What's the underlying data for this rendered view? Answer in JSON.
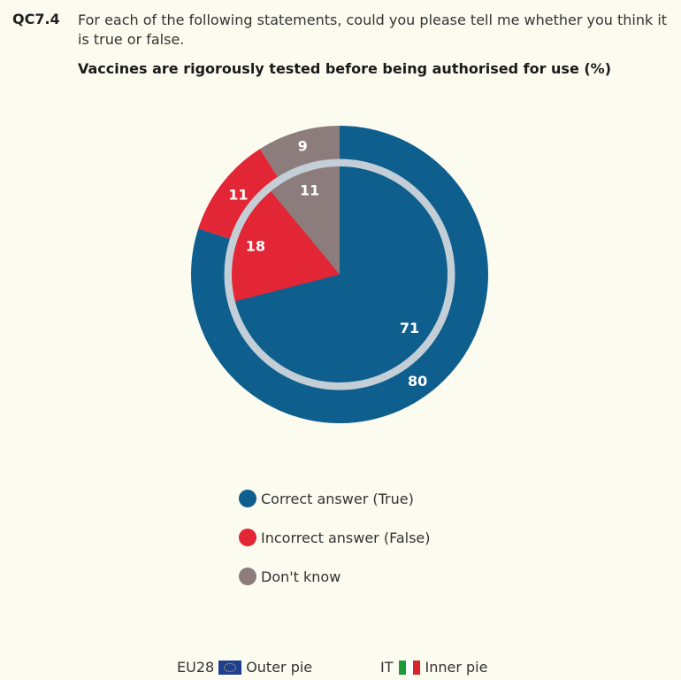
{
  "question": {
    "code": "QC7.4",
    "text": "For each of the following statements, could you please tell me whether you think it is true or false.",
    "subtitle": "Vaccines are rigorously tested before being authorised for use  (%)"
  },
  "chart_data": {
    "type": "pie",
    "title": "Vaccines are rigorously tested before being authorised for use  (%)",
    "categories": [
      "Correct answer (True)",
      "Incorrect answer (False)",
      "Don't know"
    ],
    "colors": [
      "#0e5e8e",
      "#e32636",
      "#8c7c7c"
    ],
    "series": [
      {
        "name": "Outer pie",
        "values": [
          80,
          11,
          9
        ]
      },
      {
        "name": "Inner pie",
        "values": [
          71,
          18,
          11
        ]
      }
    ]
  },
  "legend": [
    {
      "label": "Correct answer (True)",
      "color": "#0e5e8e"
    },
    {
      "label": "Incorrect answer (False)",
      "color": "#e32636"
    },
    {
      "label": "Don't know",
      "color": "#8c7c7c"
    }
  ],
  "footer": {
    "eu_label": "EU28",
    "eu_pie": "Outer pie",
    "it_label": "IT",
    "it_pie": "Inner pie",
    "it_colors": [
      "#1f9a3a",
      "#ffffff",
      "#d9252a"
    ]
  }
}
